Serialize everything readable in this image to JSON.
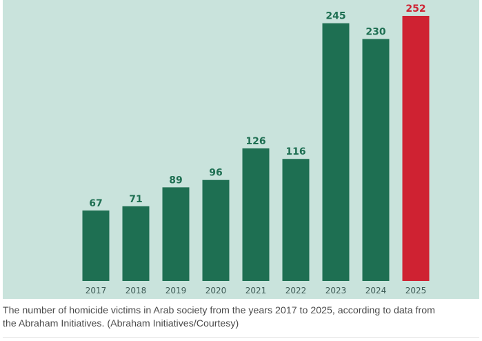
{
  "chart_data": {
    "type": "bar",
    "title": "",
    "xlabel": "",
    "ylabel": "",
    "categories": [
      "2017",
      "2018",
      "2019",
      "2020",
      "2021",
      "2022",
      "2023",
      "2024",
      "2025"
    ],
    "values": [
      67,
      71,
      89,
      96,
      126,
      116,
      245,
      230,
      252
    ],
    "highlight_index": 8,
    "ylim": [
      0,
      252
    ],
    "grid": false,
    "colors": {
      "bar": "#1e6f52",
      "highlight": "#cf2232",
      "label": "#1e6f52",
      "highlight_label": "#cf2232",
      "background": "#c9e3dc"
    }
  },
  "caption": {
    "line1": "The number of homicide victims in Arab society from the years 2017 to 2025, according to data from",
    "line2": "the Abraham Initiatives. (Abraham Initiatives/Courtesy)"
  }
}
